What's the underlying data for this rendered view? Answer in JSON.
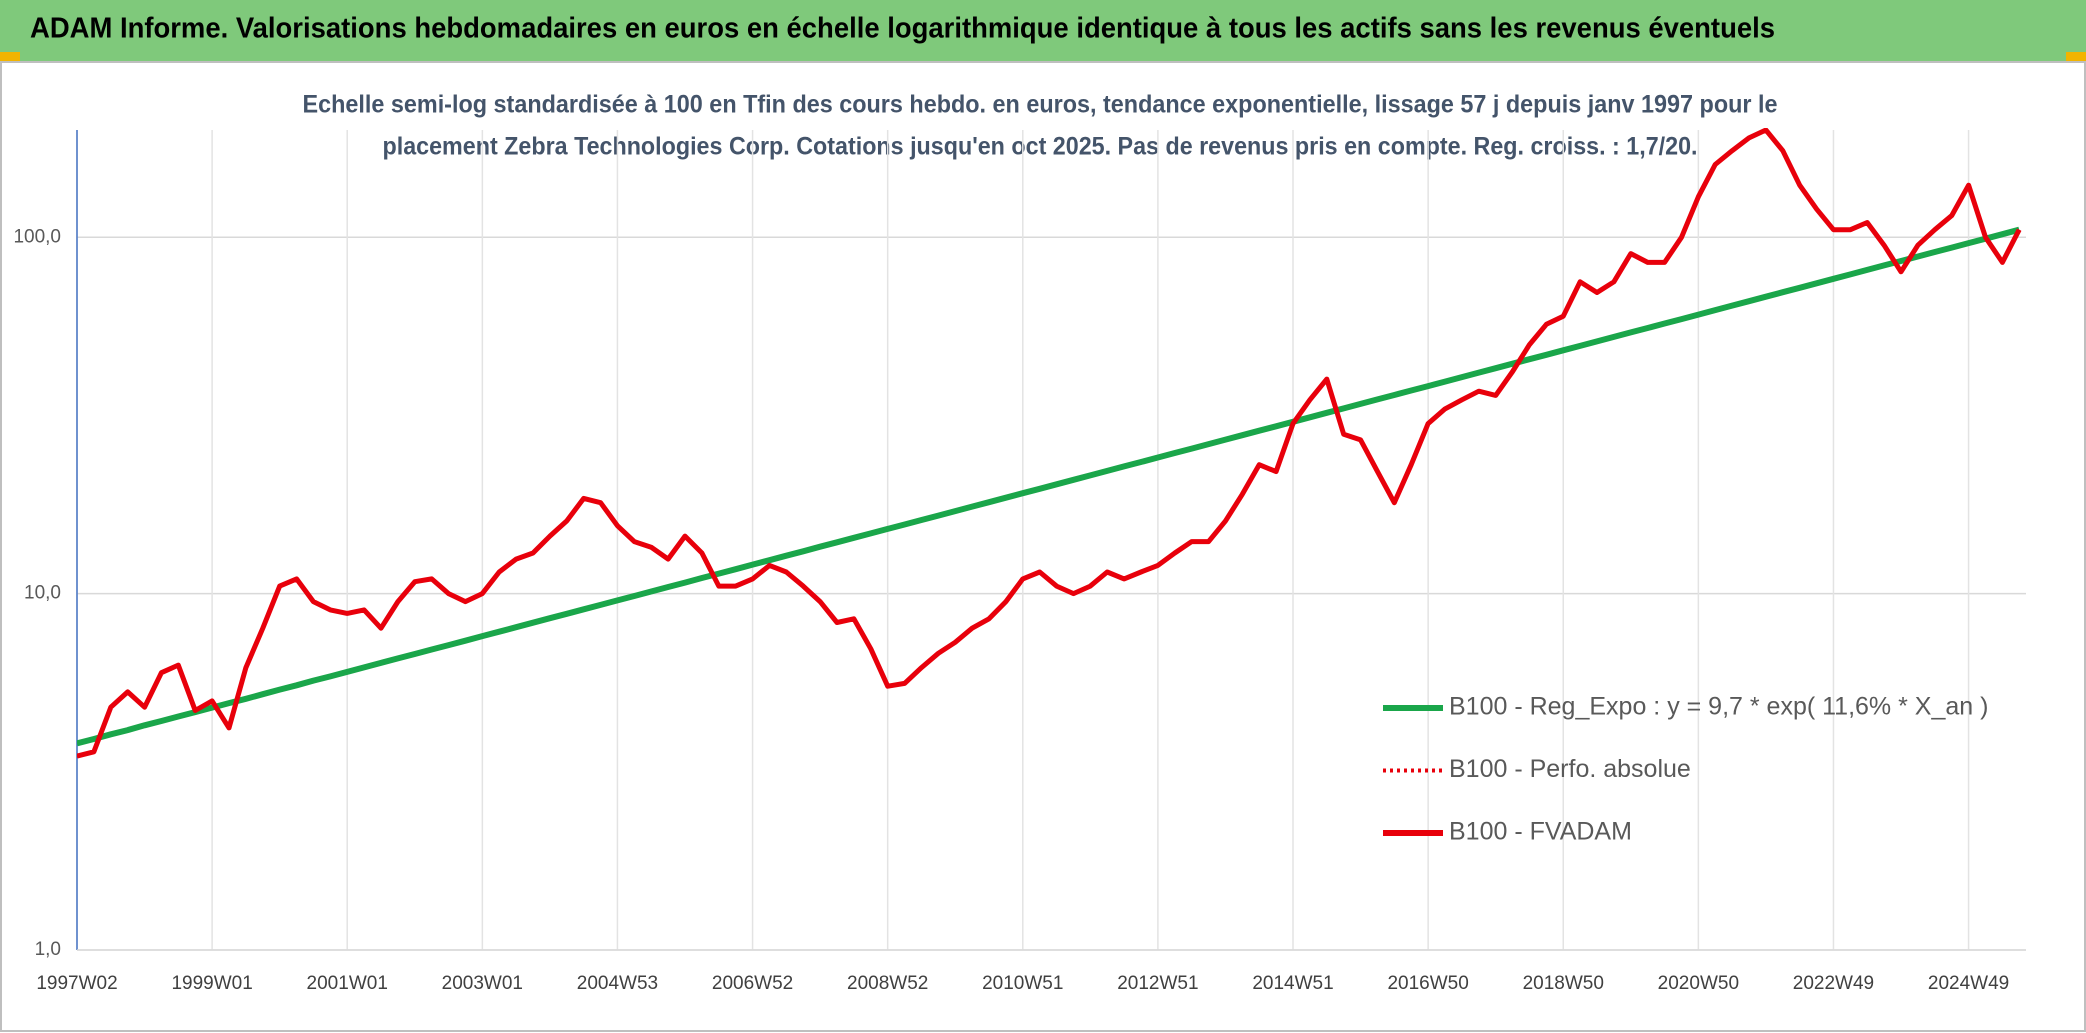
{
  "header": "ADAM Informe. Valorisations hebdomadaires en euros en échelle logarithmique identique à tous les actifs sans les revenus éventuels",
  "chart_data": {
    "type": "line",
    "title": [
      "Echelle semi-log standardisée à 100 en Tfin des cours hebdo. en euros, tendance exponentielle, lissage 57 j depuis janv 1997 pour le",
      "placement Zebra Technologies Corp. Cotations jusqu'en oct 2025. Pas de revenus pris en compte. Reg. croiss. : 1,7/20."
    ],
    "log_y": true,
    "grid": true,
    "legend": "lower right",
    "ylim": [
      1,
      200
    ],
    "yticks": [
      {
        "value": 1,
        "label": "1,0"
      },
      {
        "value": 10,
        "label": "10,0"
      },
      {
        "value": 100,
        "label": "100,0"
      }
    ],
    "categories": [
      "1997W02",
      null,
      null,
      null,
      null,
      null,
      null,
      null,
      "1999W01",
      null,
      null,
      null,
      null,
      null,
      null,
      null,
      "2001W01",
      null,
      null,
      null,
      null,
      null,
      null,
      null,
      "2003W01",
      null,
      null,
      null,
      null,
      null,
      null,
      null,
      "2004W53",
      null,
      null,
      null,
      null,
      null,
      null,
      null,
      "2006W52",
      null,
      null,
      null,
      null,
      null,
      null,
      null,
      "2008W52",
      null,
      null,
      null,
      null,
      null,
      null,
      null,
      "2010W51",
      null,
      null,
      null,
      null,
      null,
      null,
      null,
      "2012W51",
      null,
      null,
      null,
      null,
      null,
      null,
      null,
      "2014W51",
      null,
      null,
      null,
      null,
      null,
      null,
      null,
      "2016W50",
      null,
      null,
      null,
      null,
      null,
      null,
      null,
      "2018W50",
      null,
      null,
      null,
      null,
      null,
      null,
      null,
      "2020W50",
      null,
      null,
      null,
      null,
      null,
      null,
      null,
      "2022W49",
      null,
      null,
      null,
      null,
      null,
      null,
      null,
      "2024W49",
      null,
      null,
      null
    ],
    "series": [
      {
        "name": "B100 - Reg_Expo : y = 9,7 * exp( 11,6% *  X_an )",
        "color": "#1aa64a",
        "style": "solid",
        "values": [
          3.8,
          3.91,
          4.03,
          4.14,
          4.27,
          4.39,
          4.52,
          4.65,
          4.79,
          4.93,
          5.07,
          5.22,
          5.38,
          5.53,
          5.7,
          5.86,
          6.03,
          6.21,
          6.39,
          6.58,
          6.77,
          6.97,
          7.17,
          7.38,
          7.6,
          7.82,
          8.05,
          8.29,
          8.53,
          8.78,
          9.04,
          9.3,
          9.57,
          9.85,
          10.14,
          10.44,
          10.74,
          11.06,
          11.38,
          11.71,
          12.06,
          12.41,
          12.78,
          13.15,
          13.54,
          13.93,
          14.34,
          14.76,
          15.19,
          15.63,
          16.09,
          16.56,
          17.05,
          17.55,
          18.06,
          18.59,
          19.13,
          19.69,
          20.27,
          20.86,
          21.47,
          22.1,
          22.75,
          23.41,
          24.1,
          24.81,
          25.53,
          26.28,
          27.05,
          27.84,
          28.65,
          29.49,
          30.36,
          31.25,
          32.16,
          33.1,
          34.08,
          35.07,
          36.1,
          37.15,
          38.24,
          39.36,
          40.51,
          41.7,
          42.92,
          44.18,
          45.47,
          46.8,
          48.17,
          49.58,
          51.03,
          52.52,
          54.07,
          55.65,
          57.27,
          58.95,
          60.69,
          62.47,
          64.3,
          66.18,
          68.12,
          70.11,
          72.16,
          74.27,
          76.45,
          78.69,
          80.99,
          83.36,
          85.81,
          88.32,
          90.9,
          93.56,
          96.3,
          99.1,
          102.0,
          105.0
        ]
      },
      {
        "name": "B100 - Perfo. absolue",
        "color": "#e8000b",
        "style": "dotted",
        "values": [
          3.5,
          3.6,
          4.8,
          5.3,
          4.8,
          6.0,
          6.3,
          4.7,
          5.0,
          4.2,
          6.2,
          8.0,
          10.5,
          11.0,
          9.5,
          9.0,
          8.8,
          9.0,
          8.0,
          9.5,
          10.8,
          11.0,
          10.0,
          9.5,
          10.0,
          11.5,
          12.5,
          13.0,
          14.5,
          16.0,
          18.5,
          18.0,
          15.5,
          14.0,
          13.5,
          12.5,
          14.5,
          13.0,
          10.5,
          10.5,
          11.0,
          12.0,
          11.5,
          10.5,
          9.5,
          8.3,
          8.5,
          7.0,
          5.5,
          5.6,
          6.2,
          6.8,
          7.3,
          8.0,
          8.5,
          9.5,
          11.0,
          11.5,
          10.5,
          10.0,
          10.5,
          11.5,
          11.0,
          11.5,
          12.0,
          13.0,
          14.0,
          14.0,
          16.0,
          19.0,
          23.0,
          22.0,
          30,
          35,
          40,
          28,
          27,
          22,
          18,
          23,
          30,
          33,
          35,
          37,
          36,
          42,
          50,
          57,
          60,
          75,
          70,
          75,
          90,
          85,
          85,
          100,
          130,
          160,
          175,
          190,
          200,
          175,
          140,
          120,
          105,
          105,
          110,
          95,
          80,
          95,
          105,
          115,
          140,
          100,
          85,
          105
        ]
      },
      {
        "name": "B100 - FVADAM",
        "color": "#e8000b",
        "style": "solid",
        "values": [
          3.5,
          3.6,
          4.8,
          5.3,
          4.8,
          6.0,
          6.3,
          4.7,
          5.0,
          4.2,
          6.2,
          8.0,
          10.5,
          11.0,
          9.5,
          9.0,
          8.8,
          9.0,
          8.0,
          9.5,
          10.8,
          11.0,
          10.0,
          9.5,
          10.0,
          11.5,
          12.5,
          13.0,
          14.5,
          16.0,
          18.5,
          18.0,
          15.5,
          14.0,
          13.5,
          12.5,
          14.5,
          13.0,
          10.5,
          10.5,
          11.0,
          12.0,
          11.5,
          10.5,
          9.5,
          8.3,
          8.5,
          7.0,
          5.5,
          5.6,
          6.2,
          6.8,
          7.3,
          8.0,
          8.5,
          9.5,
          11.0,
          11.5,
          10.5,
          10.0,
          10.5,
          11.5,
          11.0,
          11.5,
          12.0,
          13.0,
          14.0,
          14.0,
          16.0,
          19.0,
          23.0,
          22.0,
          30,
          35,
          40,
          28,
          27,
          22,
          18,
          23,
          30,
          33,
          35,
          37,
          36,
          42,
          50,
          57,
          60,
          75,
          70,
          75,
          90,
          85,
          85,
          100,
          130,
          160,
          175,
          190,
          200,
          175,
          140,
          120,
          105,
          105,
          110,
          95,
          80,
          95,
          105,
          115,
          140,
          100,
          85,
          105
        ]
      }
    ]
  }
}
